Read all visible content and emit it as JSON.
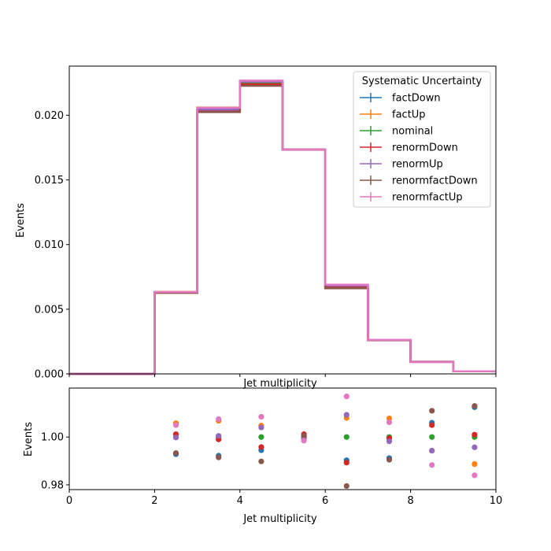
{
  "colors": {
    "factDown": "#1f77b4",
    "factUp": "#ff7f0e",
    "nominal": "#2ca02c",
    "renormDown": "#d62728",
    "renormUp": "#9467bd",
    "renormfactDown": "#8c564b",
    "renormfactUp": "#e377c2"
  },
  "chart_data": [
    {
      "type": "step",
      "xlabel": "Jet multiplicity",
      "ylabel": "Events",
      "xlim": [
        0,
        10
      ],
      "ylim": [
        0,
        0.0238
      ],
      "xticks": [
        "0",
        "2",
        "4",
        "6",
        "8",
        "10"
      ],
      "yticks": [
        {
          "value": 0.0,
          "label": "0.000"
        },
        {
          "value": 0.005,
          "label": "0.005"
        },
        {
          "value": 0.01,
          "label": "0.010"
        },
        {
          "value": 0.015,
          "label": "0.015"
        },
        {
          "value": 0.02,
          "label": "0.020"
        }
      ],
      "bin_edges": [
        0,
        1,
        2,
        3,
        4,
        5,
        6,
        7,
        8,
        9,
        10
      ],
      "legend": {
        "title": "Systematic Uncertainty",
        "position": "upper right"
      },
      "series": [
        {
          "name": "factDown",
          "values": [
            0,
            0,
            0.0063,
            0.02032,
            0.02232,
            0.01735,
            0.0067,
            0.00262,
            0.00093,
            0.0002
          ]
        },
        {
          "name": "factUp",
          "values": [
            0,
            0,
            0.00634,
            0.0206,
            0.02251,
            0.01735,
            0.00681,
            0.00263,
            0.00092,
            0.0002
          ]
        },
        {
          "name": "nominal",
          "values": [
            0,
            0,
            0.0063,
            0.02042,
            0.0225,
            0.01735,
            0.00676,
            0.00261,
            0.00093,
            0.0002
          ]
        },
        {
          "name": "renormDown",
          "values": [
            0,
            0,
            0.00631,
            0.0204,
            0.0224,
            0.01735,
            0.00669,
            0.00262,
            0.00093,
            0.0002
          ]
        },
        {
          "name": "renormUp",
          "values": [
            0,
            0,
            0.0063,
            0.02044,
            0.0226,
            0.01735,
            0.00682,
            0.00261,
            0.00092,
            0.0002
          ]
        },
        {
          "name": "renormfactDown",
          "values": [
            0,
            0,
            0.00626,
            0.02025,
            0.02228,
            0.01735,
            0.00662,
            0.0026,
            0.00094,
            0.0002
          ]
        },
        {
          "name": "renormfactUp",
          "values": [
            0,
            0,
            0.00633,
            0.02058,
            0.02268,
            0.01735,
            0.0069,
            0.00263,
            0.00092,
            0.0002
          ]
        }
      ]
    },
    {
      "type": "scatter",
      "xlabel": "Jet multiplicity",
      "ylabel": "Events",
      "xlim": [
        0,
        10
      ],
      "ylim": [
        0.978,
        1.0205
      ],
      "xticks": [
        "0",
        "2",
        "4",
        "6",
        "8",
        "10"
      ],
      "yticks": [
        {
          "value": 0.98,
          "label": "0.98"
        },
        {
          "value": 1.0,
          "label": "1.00"
        }
      ],
      "x": [
        2.5,
        3.5,
        4.5,
        5.5,
        6.5,
        7.5,
        8.5,
        9.5
      ],
      "series": [
        {
          "name": "factDown",
          "values": [
            0.9928,
            0.9922,
            0.9945,
            0.9995,
            0.9903,
            0.9912,
            1.006,
            1.0125
          ]
        },
        {
          "name": "factUp",
          "values": [
            1.0058,
            1.0068,
            1.0048,
            1.0,
            1.008,
            1.0078,
            0.9943,
            0.9887
          ]
        },
        {
          "name": "nominal",
          "values": [
            1.0,
            1.0,
            1.0,
            1.0,
            1.0,
            1.0,
            1.0,
            1.0
          ]
        },
        {
          "name": "renormDown",
          "values": [
            1.0012,
            0.999,
            0.9958,
            1.0012,
            0.9893,
            0.9995,
            1.005,
            1.001
          ]
        },
        {
          "name": "renormUp",
          "values": [
            0.9998,
            1.0005,
            1.004,
            0.9995,
            1.0093,
            0.9982,
            0.9943,
            0.9957
          ]
        },
        {
          "name": "renormfactDown",
          "values": [
            0.9933,
            0.9915,
            0.9898,
            1.0005,
            0.9795,
            0.9905,
            1.011,
            1.013
          ]
        },
        {
          "name": "renormfactUp",
          "values": [
            1.005,
            1.0075,
            1.0085,
            0.9985,
            1.017,
            1.0062,
            0.9883,
            0.984
          ]
        }
      ]
    }
  ]
}
